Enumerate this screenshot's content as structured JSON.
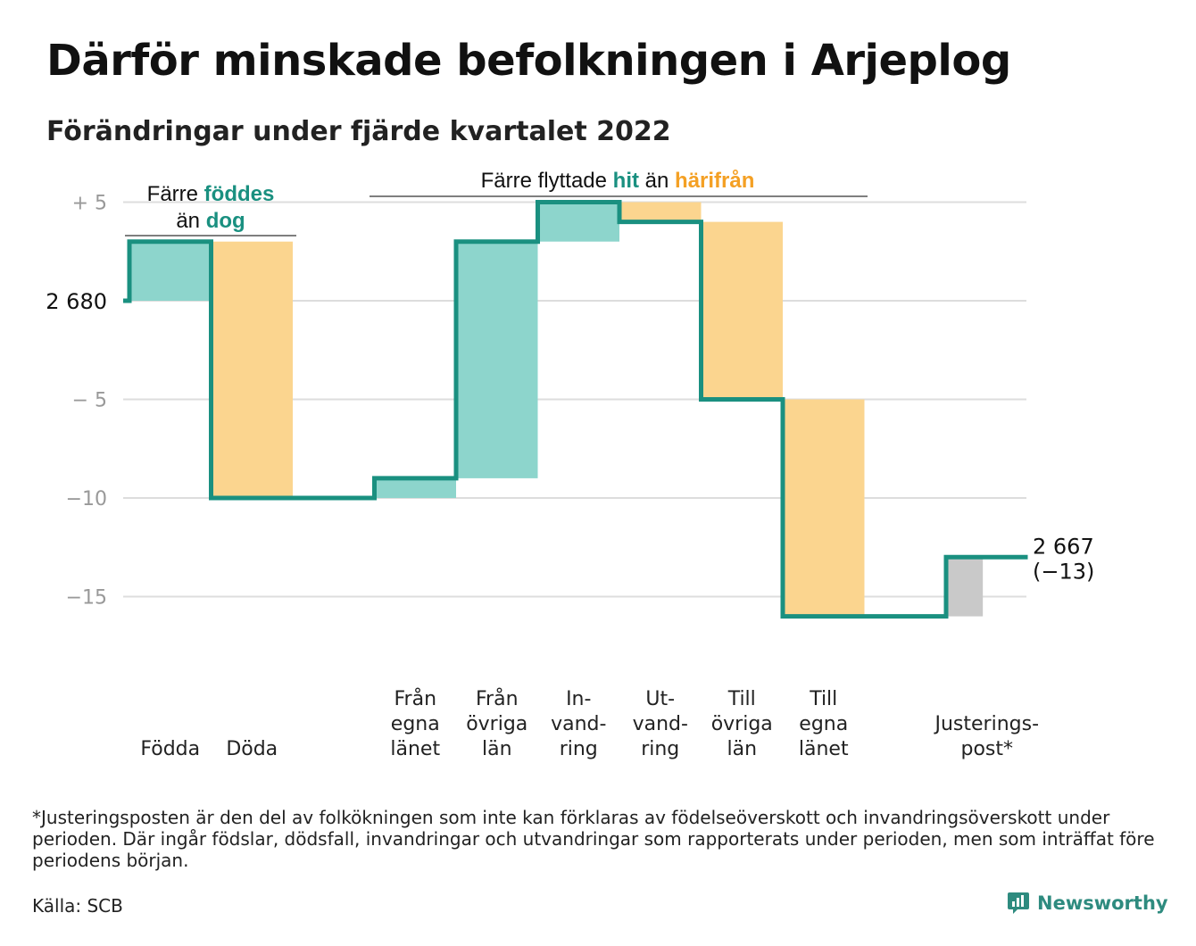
{
  "title": "Därför minskade befolkningen i Arjeplog",
  "subtitle": "Förändringar under fjärde kvartalet 2022",
  "footnote": "*Justeringsposten är den del av folkökningen som inte kan förklaras av födelseöverskott och invandringsöverskott under perioden. Där ingår födslar, dödsfall, invandringar och utvandringar som rapporterats under perioden, men som inträffat före periodens början.",
  "source": "Källa: SCB",
  "brand": "Newsworthy",
  "colors": {
    "inflow": "#8dd5cc",
    "outflow": "#fbd58f",
    "adjustment": "#c9c9c9",
    "line": "#1a9080",
    "accent_teal": "#1a9080",
    "accent_orange": "#f4a024",
    "grid": "#dddddd"
  },
  "chart_data": {
    "type": "waterfall",
    "start_population": 2680,
    "start_label": "2 680",
    "end_label": "2 667",
    "end_change_label": "(−13)",
    "ylim": [
      -17,
      5.5
    ],
    "yticks": [
      {
        "value": 5,
        "label": "+ 5"
      },
      {
        "value": 0,
        "label": ""
      },
      {
        "value": -5,
        "label": "− 5"
      },
      {
        "value": -10,
        "label": "−10"
      },
      {
        "value": -15,
        "label": "−15"
      }
    ],
    "steps": [
      {
        "label": [
          "",
          "",
          "Födda"
        ],
        "value": 3,
        "kind": "inflow"
      },
      {
        "label": [
          "",
          "",
          "Döda"
        ],
        "value": -13,
        "kind": "outflow"
      },
      {
        "label": [
          "",
          "",
          ""
        ],
        "value": 0,
        "kind": "gap"
      },
      {
        "label": [
          "Från",
          "egna",
          "länet"
        ],
        "value": 1,
        "kind": "inflow"
      },
      {
        "label": [
          "Från",
          "övriga",
          "län"
        ],
        "value": 12,
        "kind": "inflow"
      },
      {
        "label": [
          "In-",
          "vand-",
          "ring"
        ],
        "value": 2,
        "kind": "inflow"
      },
      {
        "label": [
          "Ut-",
          "vand-",
          "ring"
        ],
        "value": -1,
        "kind": "outflow"
      },
      {
        "label": [
          "Till",
          "övriga",
          "län"
        ],
        "value": -9,
        "kind": "outflow"
      },
      {
        "label": [
          "Till",
          "egna",
          "länet"
        ],
        "value": -11,
        "kind": "outflow"
      },
      {
        "label": [
          "",
          "",
          ""
        ],
        "value": 0,
        "kind": "gap"
      },
      {
        "label": [
          "",
          "Justerings-",
          "post*"
        ],
        "value": 3,
        "kind": "adjustment"
      }
    ],
    "annotations": [
      {
        "lines": [
          [
            "Färre ",
            "föddes"
          ],
          [
            "än ",
            "dog"
          ]
        ]
      },
      {
        "lines": [
          [
            "Färre flyttade ",
            "hit",
            " än ",
            "härifrån"
          ]
        ]
      }
    ]
  }
}
